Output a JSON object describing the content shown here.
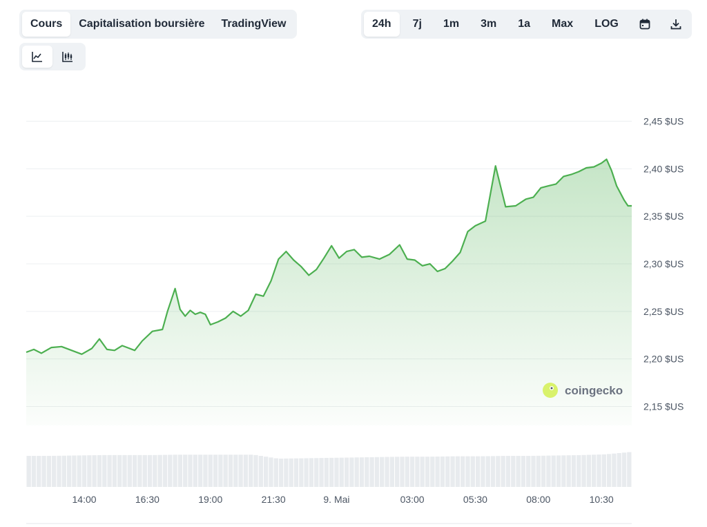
{
  "type_tabs": [
    "Cours",
    "Capitalisation boursière",
    "TradingView"
  ],
  "type_tabs_active": 0,
  "range_tabs": [
    "24h",
    "7j",
    "1m",
    "3m",
    "1a",
    "Max",
    "LOG"
  ],
  "range_tabs_active": 0,
  "icons": {
    "calendar": "calendar-icon",
    "download": "download-icon",
    "line_chart": "line-chart-icon",
    "candle_chart": "candlestick-chart-icon"
  },
  "view_tabs_active": 0,
  "watermark": "coingecko",
  "colors": {
    "line": "#4caf50",
    "volume": "#e8ebee",
    "grid": "#eceff1",
    "active_tab": "#ffffff",
    "tab_bg": "#eff2f5"
  },
  "chart_data": {
    "type": "area",
    "y_axis_position": "right",
    "ylim": [
      2.13,
      2.47
    ],
    "yticks": [
      2.45,
      2.4,
      2.35,
      2.3,
      2.25,
      2.2,
      2.15
    ],
    "ytick_labels": [
      "2,45 $US",
      "2,40 $US",
      "2,35 $US",
      "2,30 $US",
      "2,25 $US",
      "2,20 $US",
      "2,15 $US"
    ],
    "xlim": [
      0,
      24
    ],
    "xticks": [
      2.3,
      4.8,
      7.3,
      9.8,
      12.3,
      15.3,
      17.8,
      20.3,
      22.8
    ],
    "xtick_labels": [
      "14:00",
      "16:30",
      "19:00",
      "21:30",
      "9. Mai",
      "03:00",
      "05:30",
      "08:00",
      "10:30"
    ],
    "grid": true,
    "price": {
      "x": [
        0,
        0.3,
        0.6,
        1.0,
        1.4,
        1.8,
        2.2,
        2.6,
        2.9,
        3.2,
        3.5,
        3.8,
        4.0,
        4.3,
        4.6,
        5.0,
        5.4,
        5.6,
        5.9,
        6.1,
        6.3,
        6.5,
        6.7,
        6.9,
        7.1,
        7.3,
        7.6,
        7.9,
        8.2,
        8.5,
        8.8,
        9.1,
        9.4,
        9.7,
        10.0,
        10.3,
        10.6,
        10.9,
        11.2,
        11.5,
        11.8,
        12.1,
        12.4,
        12.7,
        13.0,
        13.3,
        13.6,
        14.0,
        14.4,
        14.8,
        15.1,
        15.4,
        15.7,
        16.0,
        16.3,
        16.6,
        16.9,
        17.2,
        17.5,
        17.8,
        18.2,
        18.6,
        19.0,
        19.4,
        19.8,
        20.1,
        20.4,
        20.7,
        21.0,
        21.3,
        21.6,
        21.9,
        22.2,
        22.5,
        22.8,
        23.0,
        23.2,
        23.4,
        23.7,
        23.85,
        24.0
      ],
      "y": [
        2.207,
        2.21,
        2.206,
        2.212,
        2.213,
        2.209,
        2.205,
        2.211,
        2.221,
        2.21,
        2.209,
        2.214,
        2.212,
        2.209,
        2.219,
        2.229,
        2.231,
        2.25,
        2.274,
        2.252,
        2.245,
        2.251,
        2.247,
        2.249,
        2.247,
        2.236,
        2.239,
        2.243,
        2.25,
        2.245,
        2.251,
        2.268,
        2.266,
        2.282,
        2.305,
        2.313,
        2.304,
        2.297,
        2.288,
        2.294,
        2.306,
        2.319,
        2.306,
        2.313,
        2.315,
        2.307,
        2.308,
        2.305,
        2.31,
        2.32,
        2.305,
        2.304,
        2.298,
        2.3,
        2.292,
        2.295,
        2.303,
        2.312,
        2.334,
        2.34,
        2.345,
        2.403,
        2.36,
        2.361,
        2.368,
        2.37,
        2.38,
        2.382,
        2.384,
        2.392,
        2.394,
        2.397,
        2.401,
        2.402,
        2.406,
        2.41,
        2.398,
        2.382,
        2.367,
        2.361,
        2.361
      ],
      "series_color": "#4caf50"
    },
    "volume": {
      "x": [
        0,
        1,
        2,
        3,
        4,
        5,
        6,
        7,
        8,
        9,
        10,
        11,
        12,
        13,
        14,
        15,
        16,
        17,
        18,
        19,
        20,
        21,
        22,
        23,
        24
      ],
      "values": [
        0.78,
        0.78,
        0.79,
        0.8,
        0.8,
        0.8,
        0.81,
        0.81,
        0.81,
        0.81,
        0.71,
        0.72,
        0.73,
        0.74,
        0.75,
        0.76,
        0.76,
        0.77,
        0.77,
        0.78,
        0.78,
        0.79,
        0.8,
        0.82,
        0.88
      ]
    }
  }
}
